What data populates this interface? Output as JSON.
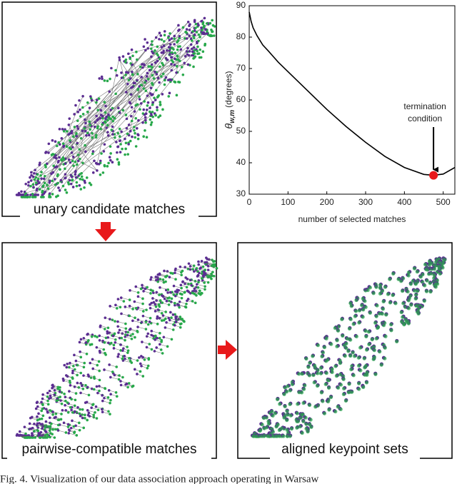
{
  "panels": [
    {
      "label": "unary candidate matches"
    },
    {
      "label": "pairwise-compatible matches"
    },
    {
      "label": "aligned keypoint sets"
    }
  ],
  "chart_data": {
    "type": "line",
    "xlabel": "number of selected matches",
    "ylabel": {
      "symbol": "θ",
      "subscript": "w,m",
      "unit": "(degrees)"
    },
    "xlim": [
      0,
      530
    ],
    "xticks": [
      0,
      100,
      200,
      300,
      400,
      500
    ],
    "ylim": [
      30,
      90
    ],
    "yticks": [
      30,
      40,
      50,
      60,
      70,
      80,
      90
    ],
    "grid": false,
    "series": [
      {
        "name": "theta",
        "color": "#000000",
        "x": [
          0,
          5,
          10,
          20,
          35,
          50,
          75,
          100,
          150,
          200,
          250,
          300,
          350,
          400,
          450,
          475,
          500,
          530
        ],
        "values": [
          88,
          85,
          83,
          80.5,
          77.5,
          75.5,
          72,
          69,
          63,
          57,
          51.5,
          46.5,
          42,
          38.5,
          36.3,
          36,
          36.4,
          38.5
        ]
      }
    ],
    "annotation": {
      "text": [
        "termination",
        "condition"
      ],
      "x": 475,
      "y": 36,
      "color": "#e8191b"
    }
  },
  "caption": "Fig. 4. Visualization of our data association approach operating in Warsaw"
}
